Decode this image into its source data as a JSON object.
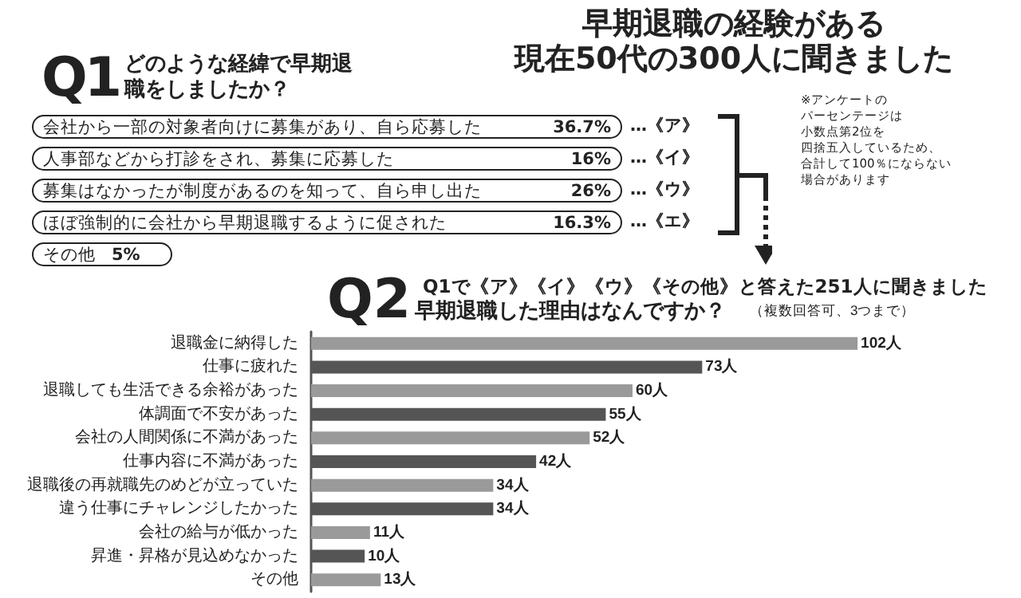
{
  "chart_data": [
    {
      "type": "other",
      "title": "Q1",
      "subtitle": "どのような経緯で早期退職をしましたか？",
      "categories": [
        "会社から一部の対象者向けに募集があり、自ら応募した",
        "人事部などから打診をされ、募集に応募した",
        "募集はなかったが制度があるのを知って、自ら申し出た",
        "ほぼ強制的に会社から早期退職するように促された",
        "その他"
      ],
      "value_labels": [
        "36.7%",
        "16%",
        "26%",
        "16.3%",
        "5%"
      ],
      "annotations": [
        "早期退職の経験がある",
        "現在50代の300人に聞きました",
        "…《ア》",
        "…《イ》",
        "…《ウ》",
        "…《エ》",
        "※アンケートの",
        "パーセンテージは",
        "小数点第2位を",
        "四捨五入しているため、",
        "合計して100％にならない",
        "場合があります"
      ]
    },
    {
      "type": "bar",
      "orientation": "horizontal",
      "title": "Q2",
      "subtitle": "Q1で《ア》《イ》《ウ》《その他》と答えた251人に聞きました",
      "annotations": [
        "早期退職した理由はなんですか？",
        "（複数回答可、3つまで）"
      ],
      "categories": [
        "退職金に納得した",
        "仕事に疲れた",
        "退職しても生活できる余裕があった",
        "体調面で不安があった",
        "会社の人間関係に不満があった",
        "仕事内容に不満があった",
        "退職後の再就職先のめどが立っていた",
        "違う仕事にチャレンジしたかった",
        "会社の給与が低かった",
        "昇進・昇格が見込めなかった",
        "その他"
      ],
      "values": [
        102,
        73,
        60,
        55,
        52,
        42,
        34,
        34,
        11,
        10,
        13
      ],
      "value_labels": [
        "102人",
        "73人",
        "60人",
        "55人",
        "52人",
        "42人",
        "34人",
        "34人",
        "11人",
        "10人",
        "13人"
      ],
      "colors": [
        "#9a9a9a",
        "#555555",
        "#9a9a9a",
        "#555555",
        "#9a9a9a",
        "#555555",
        "#9a9a9a",
        "#555555",
        "#9a9a9a",
        "#555555",
        "#9a9a9a"
      ]
    }
  ]
}
